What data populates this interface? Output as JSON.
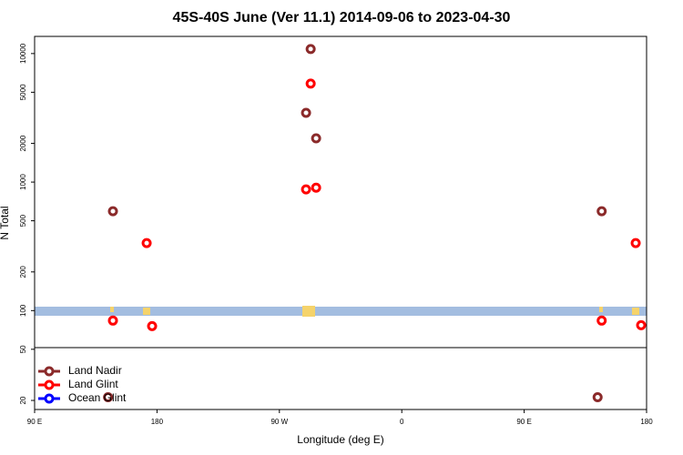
{
  "chart_data": {
    "type": "scatter",
    "title": "45S-40S June (Ver 11.1)   2014-09-06 to 2023-04-30",
    "x_label": "Longitude (deg E)",
    "y_label": "N Total",
    "log_y": true,
    "xlim": [
      90,
      540
    ],
    "ylim": [
      17,
      13600
    ],
    "xticks": [
      {
        "value": 90,
        "label": "90 E"
      },
      {
        "value": 180,
        "label": "180"
      },
      {
        "value": 270,
        "label": "90 W"
      },
      {
        "value": 360,
        "label": "0"
      },
      {
        "value": 450,
        "label": "90 E"
      },
      {
        "value": 540,
        "label": "180"
      }
    ],
    "yticks": [
      20,
      50,
      100,
      200,
      500,
      1000,
      2000,
      5000,
      10000
    ],
    "legend": "bottom-left",
    "series": [
      {
        "name": "Land Nadir",
        "color": "#8b2a2a",
        "x": [
          147.6,
          293,
          289.6,
          297,
          507,
          144,
          504
        ],
        "values": [
          593,
          10840,
          3460,
          2190,
          593,
          21.2,
          21.2
        ]
      },
      {
        "name": "Land Glint",
        "color": "#ff0000",
        "x": [
          147.6,
          172.4,
          176.4,
          293,
          289.6,
          297,
          507,
          532,
          536
        ],
        "values": [
          83.6,
          335,
          75.7,
          5840,
          877,
          905,
          83.6,
          335,
          77
        ]
      },
      {
        "name": "Ocean Glint",
        "color": "#0000ff",
        "x": [],
        "values": []
      }
    ]
  }
}
